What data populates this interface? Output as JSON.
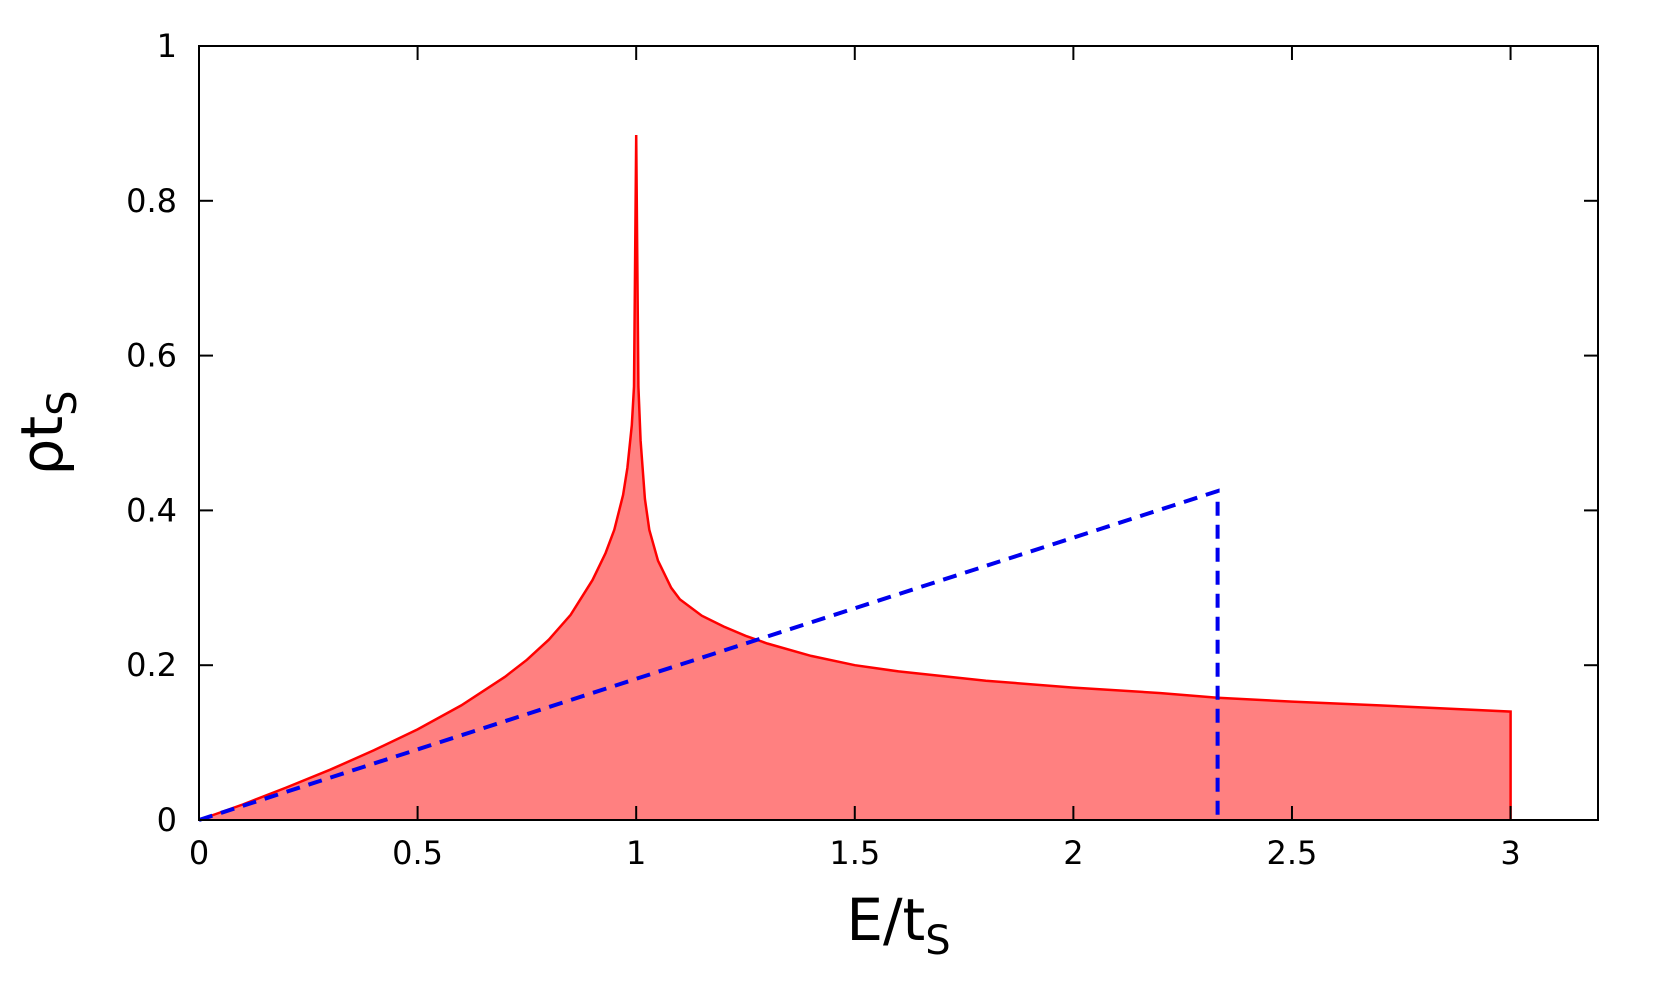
{
  "chart_data": {
    "type": "area",
    "title": "",
    "xlabel": {
      "main": "E/t",
      "sub": "S"
    },
    "ylabel": {
      "main": "ρt",
      "sub": "S"
    },
    "xlim": [
      0,
      3.2
    ],
    "ylim": [
      0,
      1
    ],
    "x_ticks": [
      0,
      0.5,
      1,
      1.5,
      2,
      2.5,
      3
    ],
    "x_tick_labels": [
      "0",
      "0.5",
      "1",
      "1.5",
      "2",
      "2.5",
      "3"
    ],
    "y_ticks": [
      0,
      0.2,
      0.4,
      0.6,
      0.8,
      1
    ],
    "y_tick_labels": [
      "0",
      "0.2",
      "0.4",
      "0.6",
      "0.8",
      "1"
    ],
    "grid": false,
    "legend": "none",
    "series": [
      {
        "style": "filled-line",
        "line_color": "#ff0000",
        "fill_color": "#ff8080",
        "x": [
          0,
          0.1,
          0.2,
          0.3,
          0.4,
          0.5,
          0.6,
          0.7,
          0.75,
          0.8,
          0.85,
          0.9,
          0.93,
          0.95,
          0.97,
          0.98,
          0.99,
          0.995,
          1.0,
          1.005,
          1.01,
          1.02,
          1.03,
          1.05,
          1.08,
          1.1,
          1.15,
          1.2,
          1.25,
          1.3,
          1.4,
          1.5,
          1.6,
          1.8,
          2.0,
          2.2,
          2.33,
          2.5,
          2.7,
          3.0
        ],
        "y": [
          0,
          0.02,
          0.042,
          0.065,
          0.09,
          0.117,
          0.148,
          0.185,
          0.207,
          0.233,
          0.265,
          0.31,
          0.345,
          0.375,
          0.42,
          0.455,
          0.51,
          0.56,
          0.885,
          0.56,
          0.49,
          0.415,
          0.375,
          0.335,
          0.3,
          0.285,
          0.264,
          0.25,
          0.238,
          0.228,
          0.212,
          0.2,
          0.192,
          0.18,
          0.171,
          0.164,
          0.158,
          0.153,
          0.148,
          0.14
        ]
      },
      {
        "style": "dashed-line",
        "line_color": "#0000ee",
        "x": [
          0,
          2.33,
          2.33
        ],
        "y": [
          0,
          0.425,
          0
        ]
      }
    ]
  }
}
